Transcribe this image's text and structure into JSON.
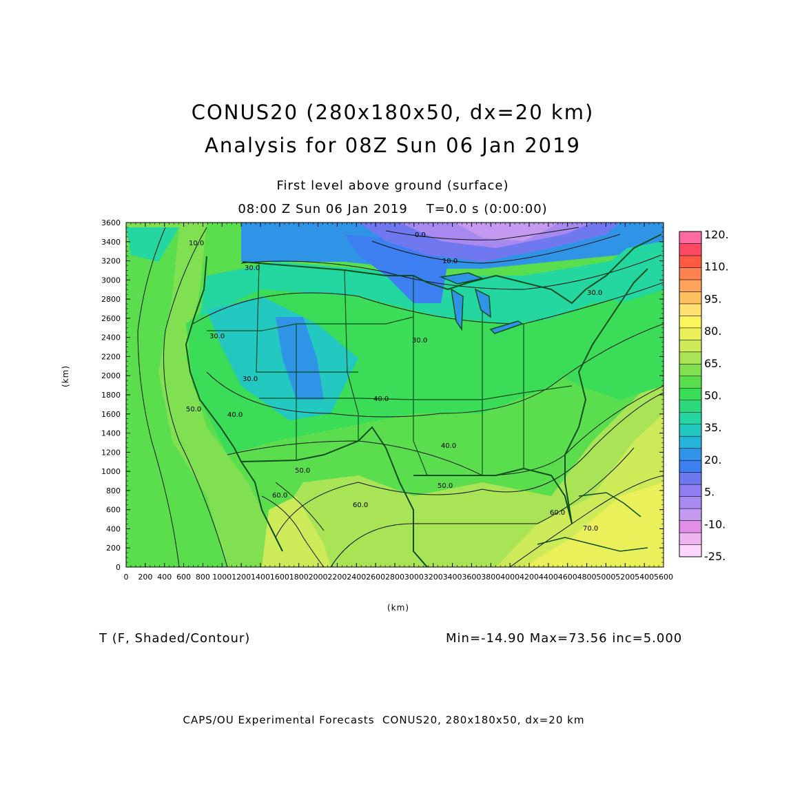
{
  "header": {
    "title_line1": "CONUS20 (280x180x50, dx=20 km)",
    "title_line2": "Analysis for 08Z Sun 06 Jan 2019",
    "level": "First level above ground (surface)",
    "time": "08:00 Z Sun 06 Jan 2019    T=0.0 s (0:00:00)"
  },
  "axes": {
    "x_label": "(km)",
    "y_label": "(km)",
    "x_ticks": [
      "0",
      "200",
      "400",
      "600",
      "800",
      "1000",
      "1200",
      "1400",
      "1600",
      "1800",
      "2000",
      "2200",
      "2400",
      "2600",
      "2800",
      "3000",
      "3200",
      "3400",
      "3600",
      "3800",
      "4000",
      "4200",
      "4400",
      "4600",
      "4800",
      "5000",
      "5200",
      "5400",
      "5600"
    ],
    "y_ticks": [
      "0",
      "200",
      "400",
      "600",
      "800",
      "1000",
      "1200",
      "1400",
      "1600",
      "1800",
      "2000",
      "2200",
      "2400",
      "2600",
      "2800",
      "3000",
      "3200",
      "3400",
      "3600"
    ],
    "x_range": [
      0,
      5600
    ],
    "y_range": [
      0,
      3600
    ]
  },
  "colorbar": {
    "colors": [
      "#ffd6ff",
      "#f0b4f0",
      "#e08ee8",
      "#c49af0",
      "#a889f0",
      "#8f7ef0",
      "#6f78ee",
      "#3c7ff0",
      "#2f94e6",
      "#26b4d8",
      "#23c8c0",
      "#24d6a0",
      "#2bd97a",
      "#3bdc58",
      "#5ade4e",
      "#80e052",
      "#a8e456",
      "#cdea58",
      "#eaf05a",
      "#fcf45c",
      "#ffe070",
      "#ffc060",
      "#ffa25a",
      "#ff8250",
      "#ff5a44",
      "#ff4a64",
      "#ff6aa2"
    ],
    "labels": [
      "120.",
      "110.",
      "95.",
      "80.",
      "65.",
      "50.",
      "35.",
      "20.",
      "5.",
      "-10.",
      "-25."
    ]
  },
  "field": {
    "variable": "T (F, Shaded/Contour)",
    "stats": "Min=-14.90 Max=73.56 inc=5.000",
    "contour_labels": [
      "0.0",
      "10.0",
      "10.0",
      "30.0",
      "30.0",
      "30.0",
      "30.0",
      "30.0",
      "40.0",
      "40.0",
      "40.0",
      "50.0",
      "50.0",
      "50.0",
      "60.0",
      "60.0",
      "60.0",
      "70.0"
    ]
  },
  "footer": "CAPS/OU Experimental Forecasts  CONUS20, 280x180x50, dx=20 km"
}
